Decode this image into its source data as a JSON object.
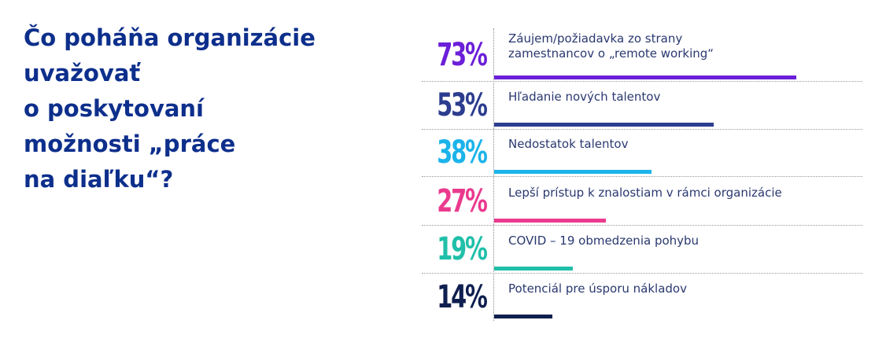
{
  "title_lines": [
    "Čo poháňa organizácie",
    "uvažovať",
    "o poskytovaní",
    "možnosti „práce",
    "na diaľku“?"
  ],
  "chart_data": {
    "type": "bar",
    "orientation": "horizontal",
    "title": "Čo poháňa organizácie uvažovať o poskytovaní možnosti „práce na diaľku“?",
    "unit": "%",
    "xlim": [
      0,
      100
    ],
    "grid": false,
    "categories": [
      [
        "Záujem/požiadavka zo strany",
        "zamestnancov o „remote working“"
      ],
      [
        "Hľadanie nových talentov"
      ],
      [
        "Nedostatok talentov"
      ],
      [
        "Lepší prístup k znalostiam v rámci organizácie"
      ],
      [
        "COVID – 19 obmedzenia pohybu"
      ],
      [
        "Potenciál pre úsporu nákladov"
      ]
    ],
    "values": [
      73,
      53,
      38,
      27,
      19,
      14
    ],
    "value_labels": [
      "73%",
      "53%",
      "38%",
      "27%",
      "19%",
      "14%"
    ],
    "colors": [
      "#6b1fd8",
      "#2c3d8f",
      "#1cb3ea",
      "#ea3a8e",
      "#20bfa9",
      "#0f1f4f"
    ]
  }
}
